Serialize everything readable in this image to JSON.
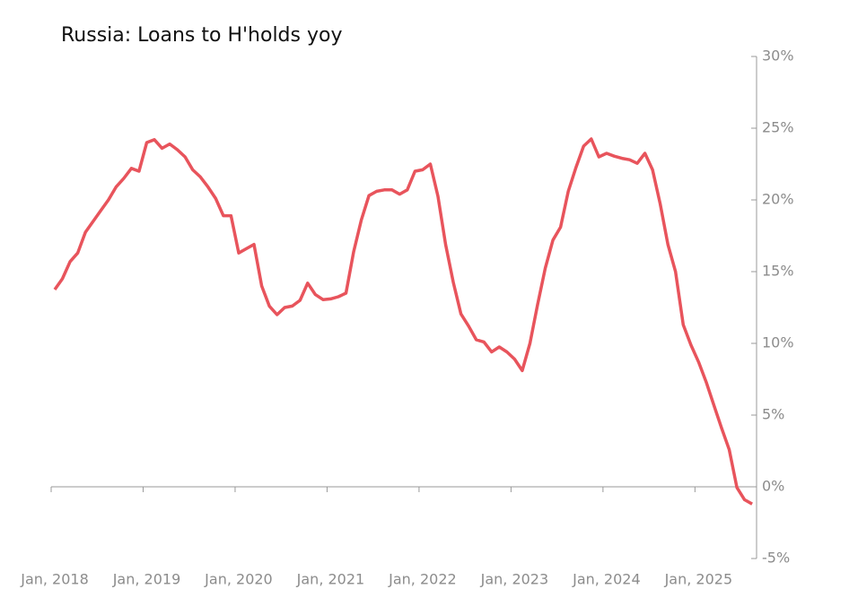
{
  "chart_data": {
    "type": "line",
    "title": "Russia: Loans to H'holds yoy",
    "x": [
      "2018-01",
      "2018-02",
      "2018-03",
      "2018-04",
      "2018-05",
      "2018-06",
      "2018-07",
      "2018-08",
      "2018-09",
      "2018-10",
      "2018-11",
      "2018-12",
      "2019-01",
      "2019-02",
      "2019-03",
      "2019-04",
      "2019-05",
      "2019-06",
      "2019-07",
      "2019-08",
      "2019-09",
      "2019-10",
      "2019-11",
      "2019-12",
      "2020-01",
      "2020-02",
      "2020-03",
      "2020-04",
      "2020-05",
      "2020-06",
      "2020-07",
      "2020-08",
      "2020-09",
      "2020-10",
      "2020-11",
      "2020-12",
      "2021-01",
      "2021-02",
      "2021-03",
      "2021-04",
      "2021-05",
      "2021-06",
      "2021-07",
      "2021-08",
      "2021-09",
      "2021-10",
      "2021-11",
      "2021-12",
      "2022-01",
      "2022-02",
      "2022-03",
      "2022-04",
      "2022-05",
      "2022-06",
      "2022-07",
      "2022-08",
      "2022-09",
      "2022-10",
      "2022-11",
      "2022-12",
      "2023-01",
      "2023-02",
      "2023-03",
      "2023-04",
      "2023-05",
      "2023-06",
      "2023-07",
      "2023-08",
      "2023-09",
      "2023-10",
      "2023-11",
      "2023-12",
      "2024-01",
      "2024-02",
      "2024-03",
      "2024-04",
      "2024-05",
      "2024-06",
      "2024-07",
      "2024-08",
      "2024-09",
      "2024-10",
      "2024-11",
      "2024-12",
      "2025-01",
      "2025-02",
      "2025-03",
      "2025-04",
      "2025-05",
      "2025-06",
      "2025-07",
      "2025-08"
    ],
    "series": [
      {
        "name": "Loans to H'holds yoy",
        "color": "#e8545c",
        "values": [
          13.75,
          14.5,
          15.7,
          16.3,
          17.75,
          18.5,
          19.25,
          20.0,
          20.9,
          21.5,
          22.2,
          22.0,
          24.0,
          24.2,
          23.6,
          23.9,
          23.5,
          23.0,
          22.1,
          21.6,
          20.9,
          20.1,
          18.9,
          18.9,
          16.3,
          16.6,
          16.9,
          14.0,
          12.6,
          12.0,
          12.5,
          12.6,
          13.0,
          14.2,
          13.4,
          13.05,
          13.1,
          13.25,
          13.5,
          16.4,
          18.6,
          20.3,
          20.6,
          20.7,
          20.7,
          20.4,
          20.7,
          22.0,
          22.1,
          22.5,
          20.25,
          16.9,
          14.25,
          12.05,
          11.2,
          10.25,
          10.1,
          9.4,
          9.75,
          9.4,
          8.9,
          8.1,
          10.0,
          12.7,
          15.25,
          17.2,
          18.1,
          20.6,
          22.25,
          23.75,
          24.25,
          23.0,
          23.25,
          23.05,
          22.9,
          22.8,
          22.55,
          23.25,
          22.1,
          19.7,
          16.9,
          15.0,
          11.3,
          9.9,
          8.7,
          7.3,
          5.7,
          4.1,
          2.6,
          -0.05,
          -0.9,
          -1.2
        ]
      }
    ],
    "xticks": [
      {
        "value": "2018-01",
        "label": "Jan, 2018"
      },
      {
        "value": "2019-01",
        "label": "Jan, 2019"
      },
      {
        "value": "2020-01",
        "label": "Jan, 2020"
      },
      {
        "value": "2021-01",
        "label": "Jan, 2021"
      },
      {
        "value": "2022-01",
        "label": "Jan, 2022"
      },
      {
        "value": "2023-01",
        "label": "Jan, 2023"
      },
      {
        "value": "2024-01",
        "label": "Jan, 2024"
      },
      {
        "value": "2025-01",
        "label": "Jan, 2025"
      }
    ],
    "ylim": [
      -5,
      30
    ],
    "yticks": [
      {
        "value": 30,
        "label": "30%"
      },
      {
        "value": 25,
        "label": "25%"
      },
      {
        "value": 20,
        "label": "20%"
      },
      {
        "value": 15,
        "label": "15%"
      },
      {
        "value": 10,
        "label": "10%"
      },
      {
        "value": 5,
        "label": "5%"
      },
      {
        "value": 0,
        "label": "0%"
      },
      {
        "value": -5,
        "label": "-5%"
      }
    ],
    "y_axis_side": "right"
  }
}
